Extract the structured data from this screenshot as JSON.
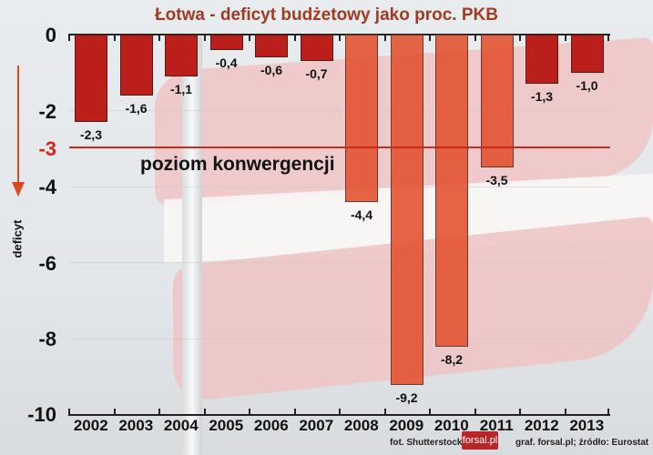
{
  "title": "Łotwa - deficyt budżetowy jako proc. PKB",
  "y_axis": {
    "label": "deficyt",
    "ticks": [
      "0",
      "-2",
      "-3",
      "-4",
      "-6",
      "-8",
      "-10"
    ],
    "highlight_tick": "-3"
  },
  "convergence_label": "poziom konwergencji",
  "credits": {
    "photo": "fot. Shutterstock",
    "logo": "forsal.pl",
    "source": "graf. forsal.pl;  źródło: Eurostat"
  },
  "colors": {
    "title": "#a23a22",
    "bar_dark": "#bb1f1c",
    "bar_light": "#e2502d",
    "convergence_line": "#cc2a1a",
    "arrow": "#d8491f"
  },
  "bars": [
    {
      "year": "2002",
      "value": -2.3,
      "label": "-2,3",
      "style": "dark"
    },
    {
      "year": "2003",
      "value": -1.6,
      "label": "-1,6",
      "style": "dark"
    },
    {
      "year": "2004",
      "value": -1.1,
      "label": "-1,1",
      "style": "dark"
    },
    {
      "year": "2005",
      "value": -0.4,
      "label": "-0,4",
      "style": "dark"
    },
    {
      "year": "2006",
      "value": -0.6,
      "label": "-0,6",
      "style": "dark"
    },
    {
      "year": "2007",
      "value": -0.7,
      "label": "-0,7",
      "style": "dark"
    },
    {
      "year": "2008",
      "value": -4.4,
      "label": "-4,4",
      "style": "light"
    },
    {
      "year": "2009",
      "value": -9.2,
      "label": "-9,2",
      "style": "light"
    },
    {
      "year": "2010",
      "value": -8.2,
      "label": "-8,2",
      "style": "light"
    },
    {
      "year": "2011",
      "value": -3.5,
      "label": "-3,5",
      "style": "light"
    },
    {
      "year": "2012",
      "value": -1.3,
      "label": "-1,3",
      "style": "dark"
    },
    {
      "year": "2013",
      "value": -1.0,
      "label": "-1,0",
      "style": "dark"
    }
  ],
  "chart_data": {
    "type": "bar",
    "title": "Łotwa - deficyt budżetowy jako proc. PKB",
    "categories": [
      "2002",
      "2003",
      "2004",
      "2005",
      "2006",
      "2007",
      "2008",
      "2009",
      "2010",
      "2011",
      "2012",
      "2013"
    ],
    "values": [
      -2.3,
      -1.6,
      -1.1,
      -0.4,
      -0.6,
      -0.7,
      -4.4,
      -9.2,
      -8.2,
      -3.5,
      -1.3,
      -1.0
    ],
    "data_labels": [
      "-2,3",
      "-1,6",
      "-1,1",
      "-0,4",
      "-0,6",
      "-0,7",
      "-4,4",
      "-9,2",
      "-8,2",
      "-3,5",
      "-1,3",
      "-1,0"
    ],
    "xlabel": "",
    "ylabel": "deficyt",
    "ylim": [
      -10,
      0
    ],
    "yticks": [
      0,
      -2,
      -3,
      -4,
      -6,
      -8,
      -10
    ],
    "reference_line": {
      "y": -3,
      "label": "poziom konwergencji"
    },
    "x_axis_position": "top",
    "grid": true,
    "legend": "none",
    "annotations": [
      "fot. Shutterstock",
      "forsal.pl",
      "graf. forsal.pl;  źródło: Eurostat"
    ]
  }
}
